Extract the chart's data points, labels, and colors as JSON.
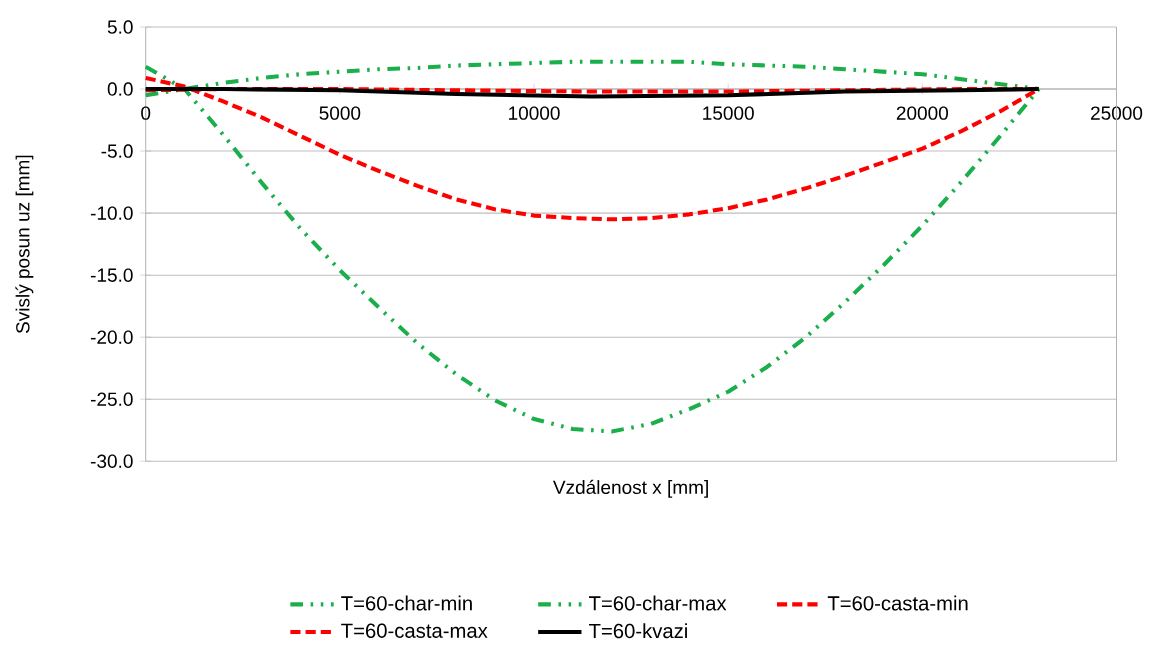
{
  "chart_data": {
    "type": "line",
    "xlabel": "Vzdálenost x [mm]",
    "ylabel": "Svislý posun uz [mm]",
    "xlim": [
      0,
      25000
    ],
    "xticks": [
      0,
      5000,
      10000,
      15000,
      20000,
      25000
    ],
    "ylim": [
      -30,
      5
    ],
    "yticks": [
      {
        "value": -30,
        "label": "-30.0"
      },
      {
        "value": -25,
        "label": "-25.0"
      },
      {
        "value": -20,
        "label": "-20.0"
      },
      {
        "value": -15,
        "label": "-15.0"
      },
      {
        "value": -10,
        "label": "-10.0"
      },
      {
        "value": -5,
        "label": "-5.0"
      },
      {
        "value": 0,
        "label": "0.0"
      },
      {
        "value": 5,
        "label": "5.0"
      }
    ],
    "grid": "y",
    "legend": "bottom",
    "series": [
      {
        "name": "T=60-char-min",
        "color": "#1aaf4b",
        "line_style": "dotted",
        "x": [
          0,
          1000,
          2000,
          3000,
          4000,
          5000,
          6000,
          7000,
          8000,
          9000,
          10000,
          11000,
          12000,
          13000,
          14000,
          15000,
          16000,
          17000,
          18000,
          19000,
          20000,
          21000,
          22000,
          23000
        ],
        "values": [
          1.8,
          0.0,
          -3.7,
          -7.6,
          -11.3,
          -14.6,
          -17.6,
          -20.5,
          -23.0,
          -25.1,
          -26.6,
          -27.4,
          -27.6,
          -27.0,
          -25.8,
          -24.4,
          -22.4,
          -20.0,
          -17.2,
          -14.2,
          -11.0,
          -7.5,
          -3.8,
          0.0
        ]
      },
      {
        "name": "T=60-char-max",
        "color": "#1aaf4b",
        "line_style": "dotted",
        "x": [
          0,
          1000,
          2000,
          3000,
          4000,
          5000,
          6000,
          7000,
          8000,
          9000,
          10000,
          11000,
          12000,
          13000,
          14000,
          15000,
          16000,
          17000,
          18000,
          19000,
          20000,
          21000,
          22000,
          23000
        ],
        "values": [
          -0.5,
          0.0,
          0.5,
          0.9,
          1.2,
          1.4,
          1.6,
          1.7,
          1.9,
          2.0,
          2.1,
          2.2,
          2.2,
          2.2,
          2.2,
          2.0,
          1.9,
          1.8,
          1.6,
          1.4,
          1.2,
          0.8,
          0.4,
          0.0
        ]
      },
      {
        "name": "T=60-casta-min",
        "color": "#ff0000",
        "line_style": "dashed",
        "x": [
          0,
          1000,
          2000,
          3000,
          4000,
          5000,
          6000,
          7000,
          8000,
          9000,
          10000,
          11000,
          12000,
          13000,
          14000,
          15000,
          16000,
          17000,
          18000,
          19000,
          20000,
          21000,
          22000,
          23000
        ],
        "values": [
          0.9,
          0.2,
          -1.0,
          -2.3,
          -3.8,
          -5.3,
          -6.6,
          -7.8,
          -8.9,
          -9.7,
          -10.2,
          -10.4,
          -10.5,
          -10.4,
          -10.1,
          -9.6,
          -8.9,
          -8.0,
          -7.0,
          -5.9,
          -4.8,
          -3.4,
          -1.8,
          0.0
        ]
      },
      {
        "name": "T=60-casta-max",
        "color": "#ff0000",
        "line_style": "dashed",
        "x": [
          0,
          2000,
          5000,
          8000,
          11500,
          15000,
          18000,
          21000,
          23000
        ],
        "values": [
          -0.1,
          0.0,
          0.0,
          -0.1,
          -0.2,
          -0.2,
          -0.1,
          0.0,
          0.0
        ]
      },
      {
        "name": "T=60-kvazi",
        "color": "#000000",
        "line_style": "solid",
        "x": [
          0,
          2000,
          5000,
          8000,
          11500,
          15000,
          18000,
          21000,
          23000
        ],
        "values": [
          0.0,
          0.0,
          -0.1,
          -0.4,
          -0.6,
          -0.5,
          -0.2,
          -0.1,
          0.0
        ]
      }
    ]
  }
}
